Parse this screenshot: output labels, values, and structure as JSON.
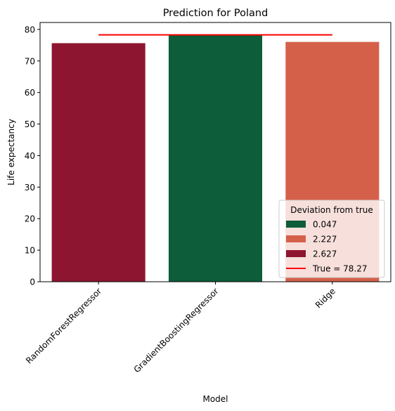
{
  "chart_data": {
    "type": "bar",
    "title": "Prediction for Poland",
    "xlabel": "Model",
    "ylabel": "Life expectancy",
    "categories": [
      "RandomForestRegressor",
      "GradientBoostingRegressor",
      "Ridge"
    ],
    "values": [
      75.64,
      78.22,
      76.04
    ],
    "bar_colors": [
      "#8e1530",
      "#0d5c3a",
      "#d5604a"
    ],
    "ylim": [
      0,
      82.2
    ],
    "yticks": [
      0,
      10,
      20,
      30,
      40,
      50,
      60,
      70,
      80
    ],
    "grid": false,
    "reference_line": {
      "value": 78.27,
      "color": "#ff0000"
    },
    "legend": {
      "title": "Deviation from true",
      "placement": "lower-right",
      "entries": [
        {
          "label": "0.047",
          "color": "#0d5c3a",
          "kind": "patch"
        },
        {
          "label": "2.227",
          "color": "#d5604a",
          "kind": "patch"
        },
        {
          "label": "2.627",
          "color": "#8e1530",
          "kind": "patch"
        },
        {
          "label": "True = 78.27",
          "color": "#ff0000",
          "kind": "line"
        }
      ]
    }
  }
}
